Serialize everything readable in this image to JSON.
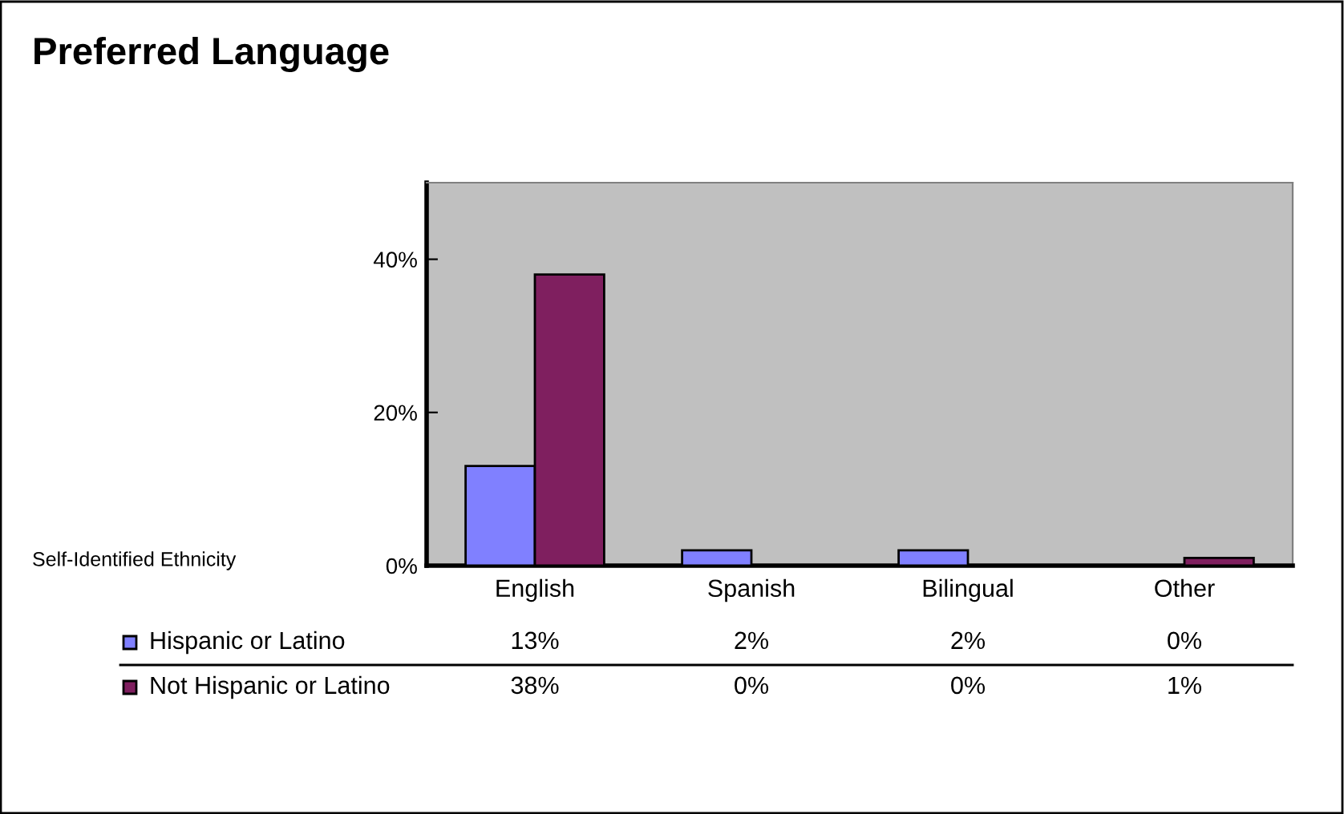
{
  "chart_data": {
    "type": "bar",
    "title": "Preferred Language",
    "legend_title": "Self-Identified Ethnicity",
    "categories": [
      "English",
      "Spanish",
      "Bilingual",
      "Other"
    ],
    "series": [
      {
        "name": "Hispanic or Latino",
        "color": "#8080ff",
        "values": [
          13,
          2,
          2,
          0
        ],
        "value_labels": [
          "13%",
          "2%",
          "2%",
          "0%"
        ]
      },
      {
        "name": "Not Hispanic or Latino",
        "color": "#7f1f5f",
        "values": [
          38,
          0,
          0,
          1
        ],
        "value_labels": [
          "38%",
          "0%",
          "0%",
          "1%"
        ]
      }
    ],
    "ylim": [
      0,
      50
    ],
    "yticks": [
      {
        "value": 0,
        "label": "0%"
      },
      {
        "value": 20,
        "label": "20%"
      },
      {
        "value": 40,
        "label": "40%"
      }
    ],
    "grid": false,
    "legend": "bottom",
    "data_labels": true
  }
}
